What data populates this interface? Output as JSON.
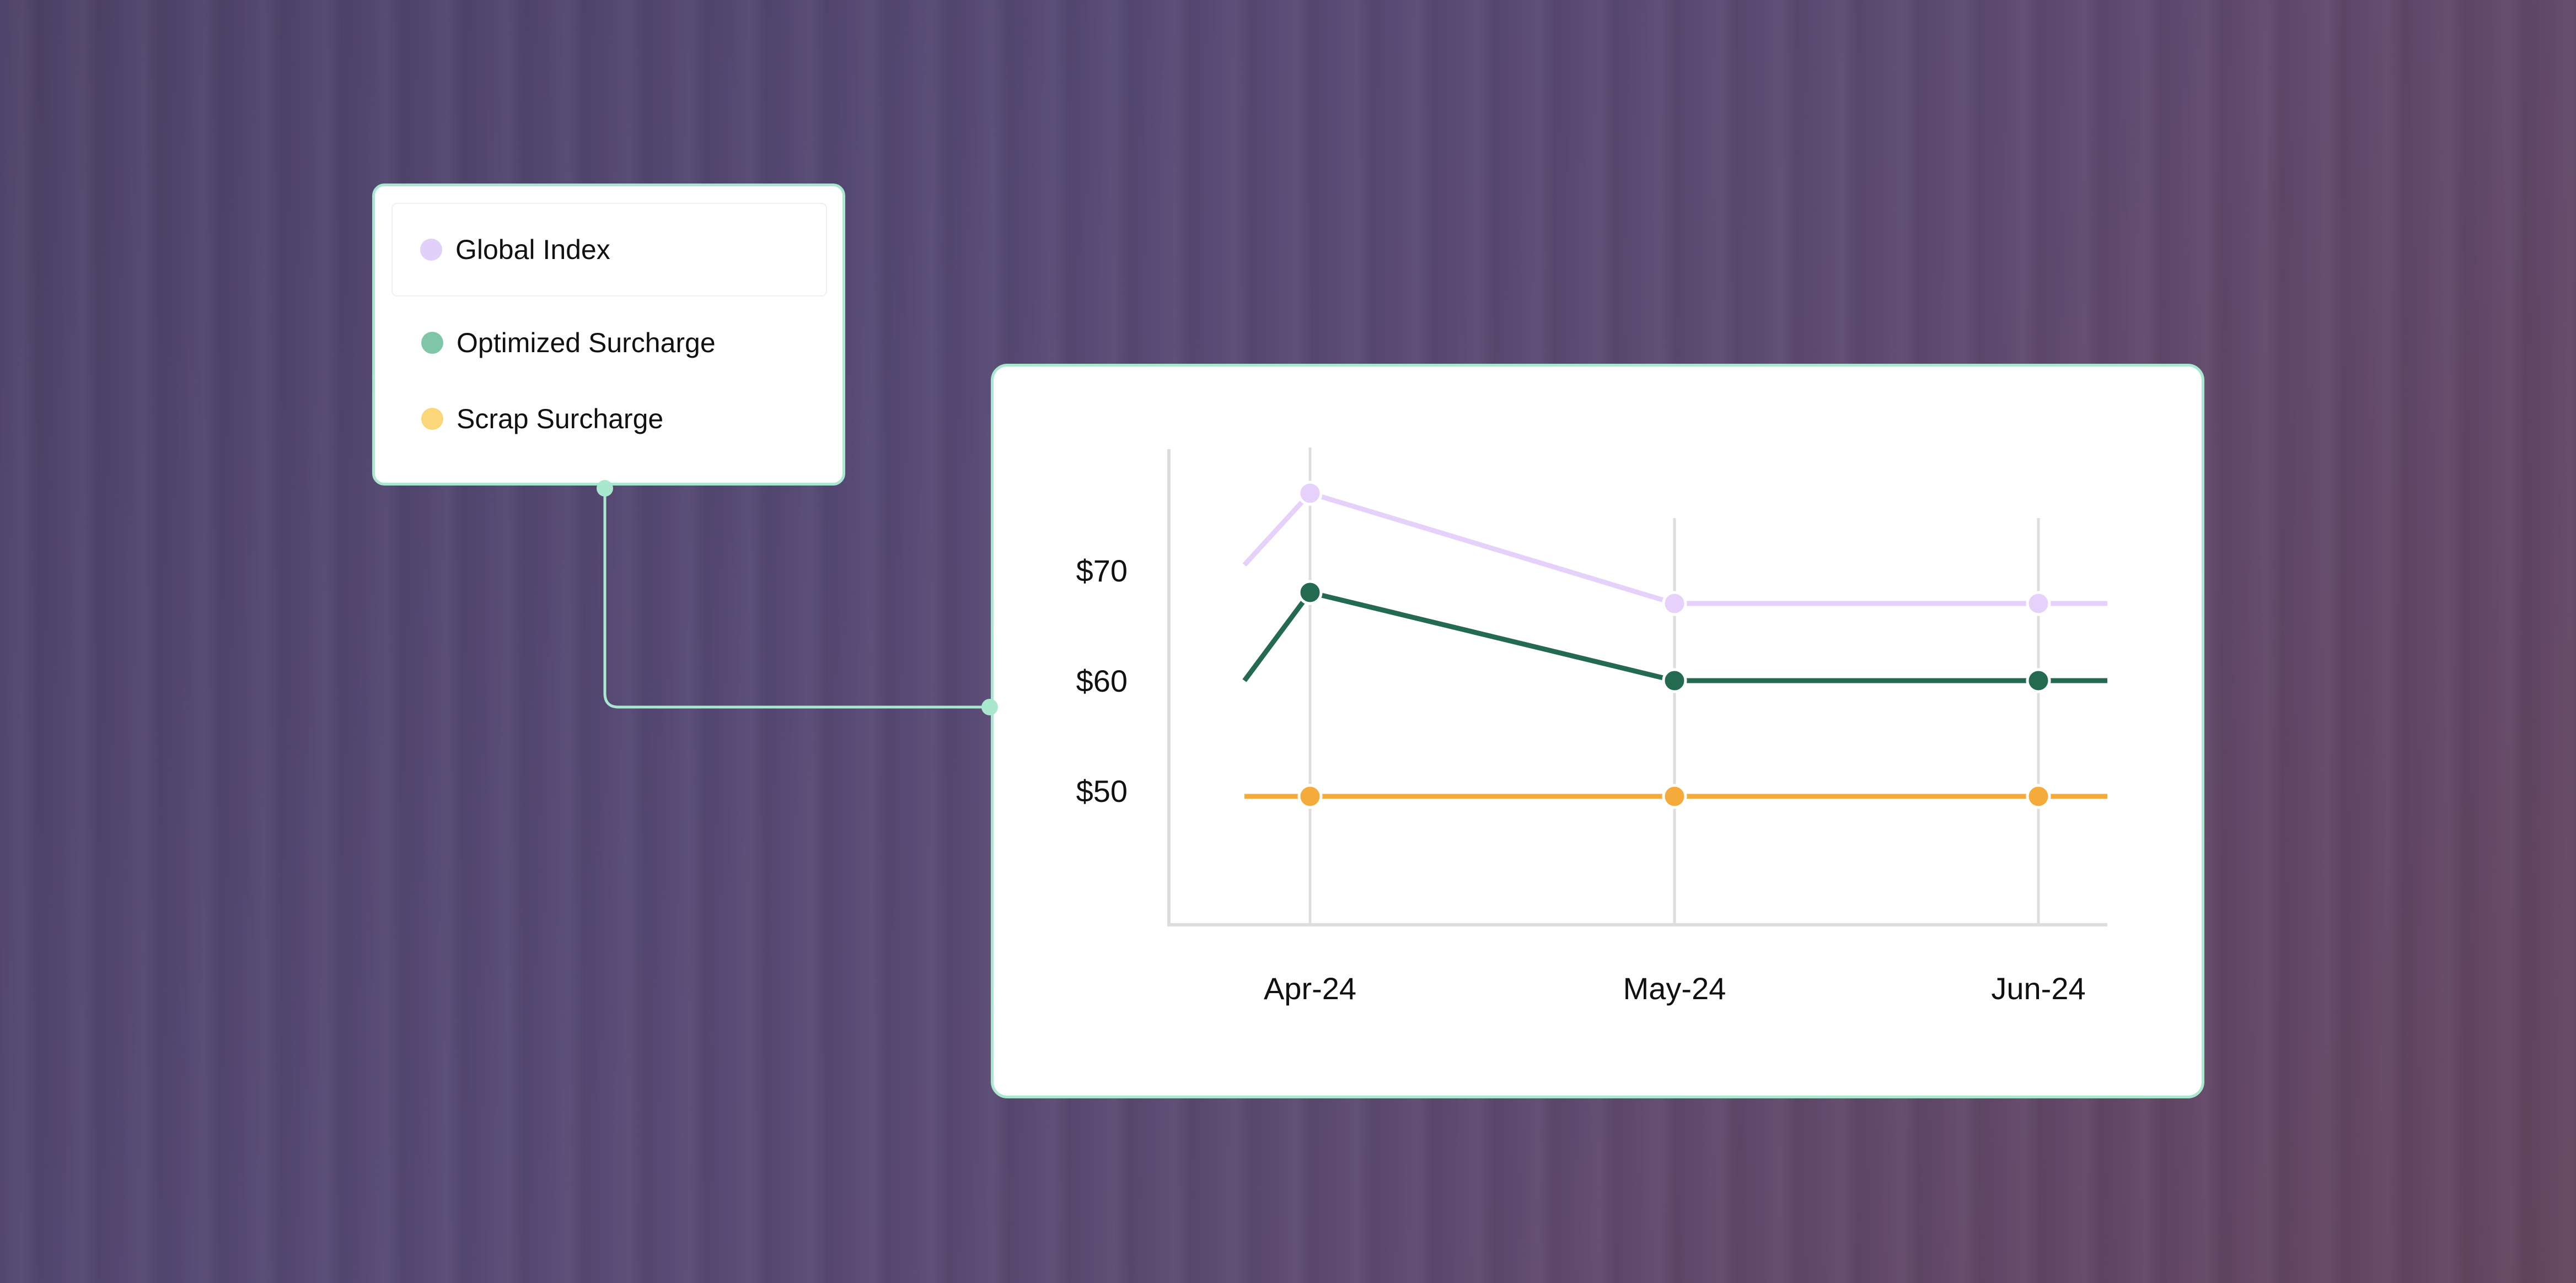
{
  "colors": {
    "connector": "#a9e8cf",
    "axis": "#dddddd",
    "grid": "#dddddd"
  },
  "legend": {
    "items": [
      {
        "label": "Global Index",
        "color": "#e3d0fa"
      },
      {
        "label": "Optimized Surcharge",
        "color": "#7fc6a6"
      },
      {
        "label": "Scrap Surcharge",
        "color": "#fbd77a"
      }
    ]
  },
  "chart_data": {
    "type": "line",
    "categories": [
      "Apr-24",
      "May-24",
      "Jun-24"
    ],
    "y_ticks": [
      "$70",
      "$60",
      "$50"
    ],
    "y_tick_values": [
      70,
      60,
      50
    ],
    "grid": true,
    "series": [
      {
        "name": "Global Index",
        "color": "#e6d1fb",
        "lead_in": 70.5,
        "values": [
          77,
          67,
          67
        ],
        "tail": 67
      },
      {
        "name": "Optimized Surcharge",
        "color": "#236a50",
        "lead_in": 60,
        "values": [
          68,
          60,
          60
        ],
        "tail": 60
      },
      {
        "name": "Scrap Surcharge",
        "color": "#f4ab3c",
        "lead_in": 49.5,
        "values": [
          49.5,
          49.5,
          49.5
        ],
        "tail": 49.5
      }
    ]
  }
}
